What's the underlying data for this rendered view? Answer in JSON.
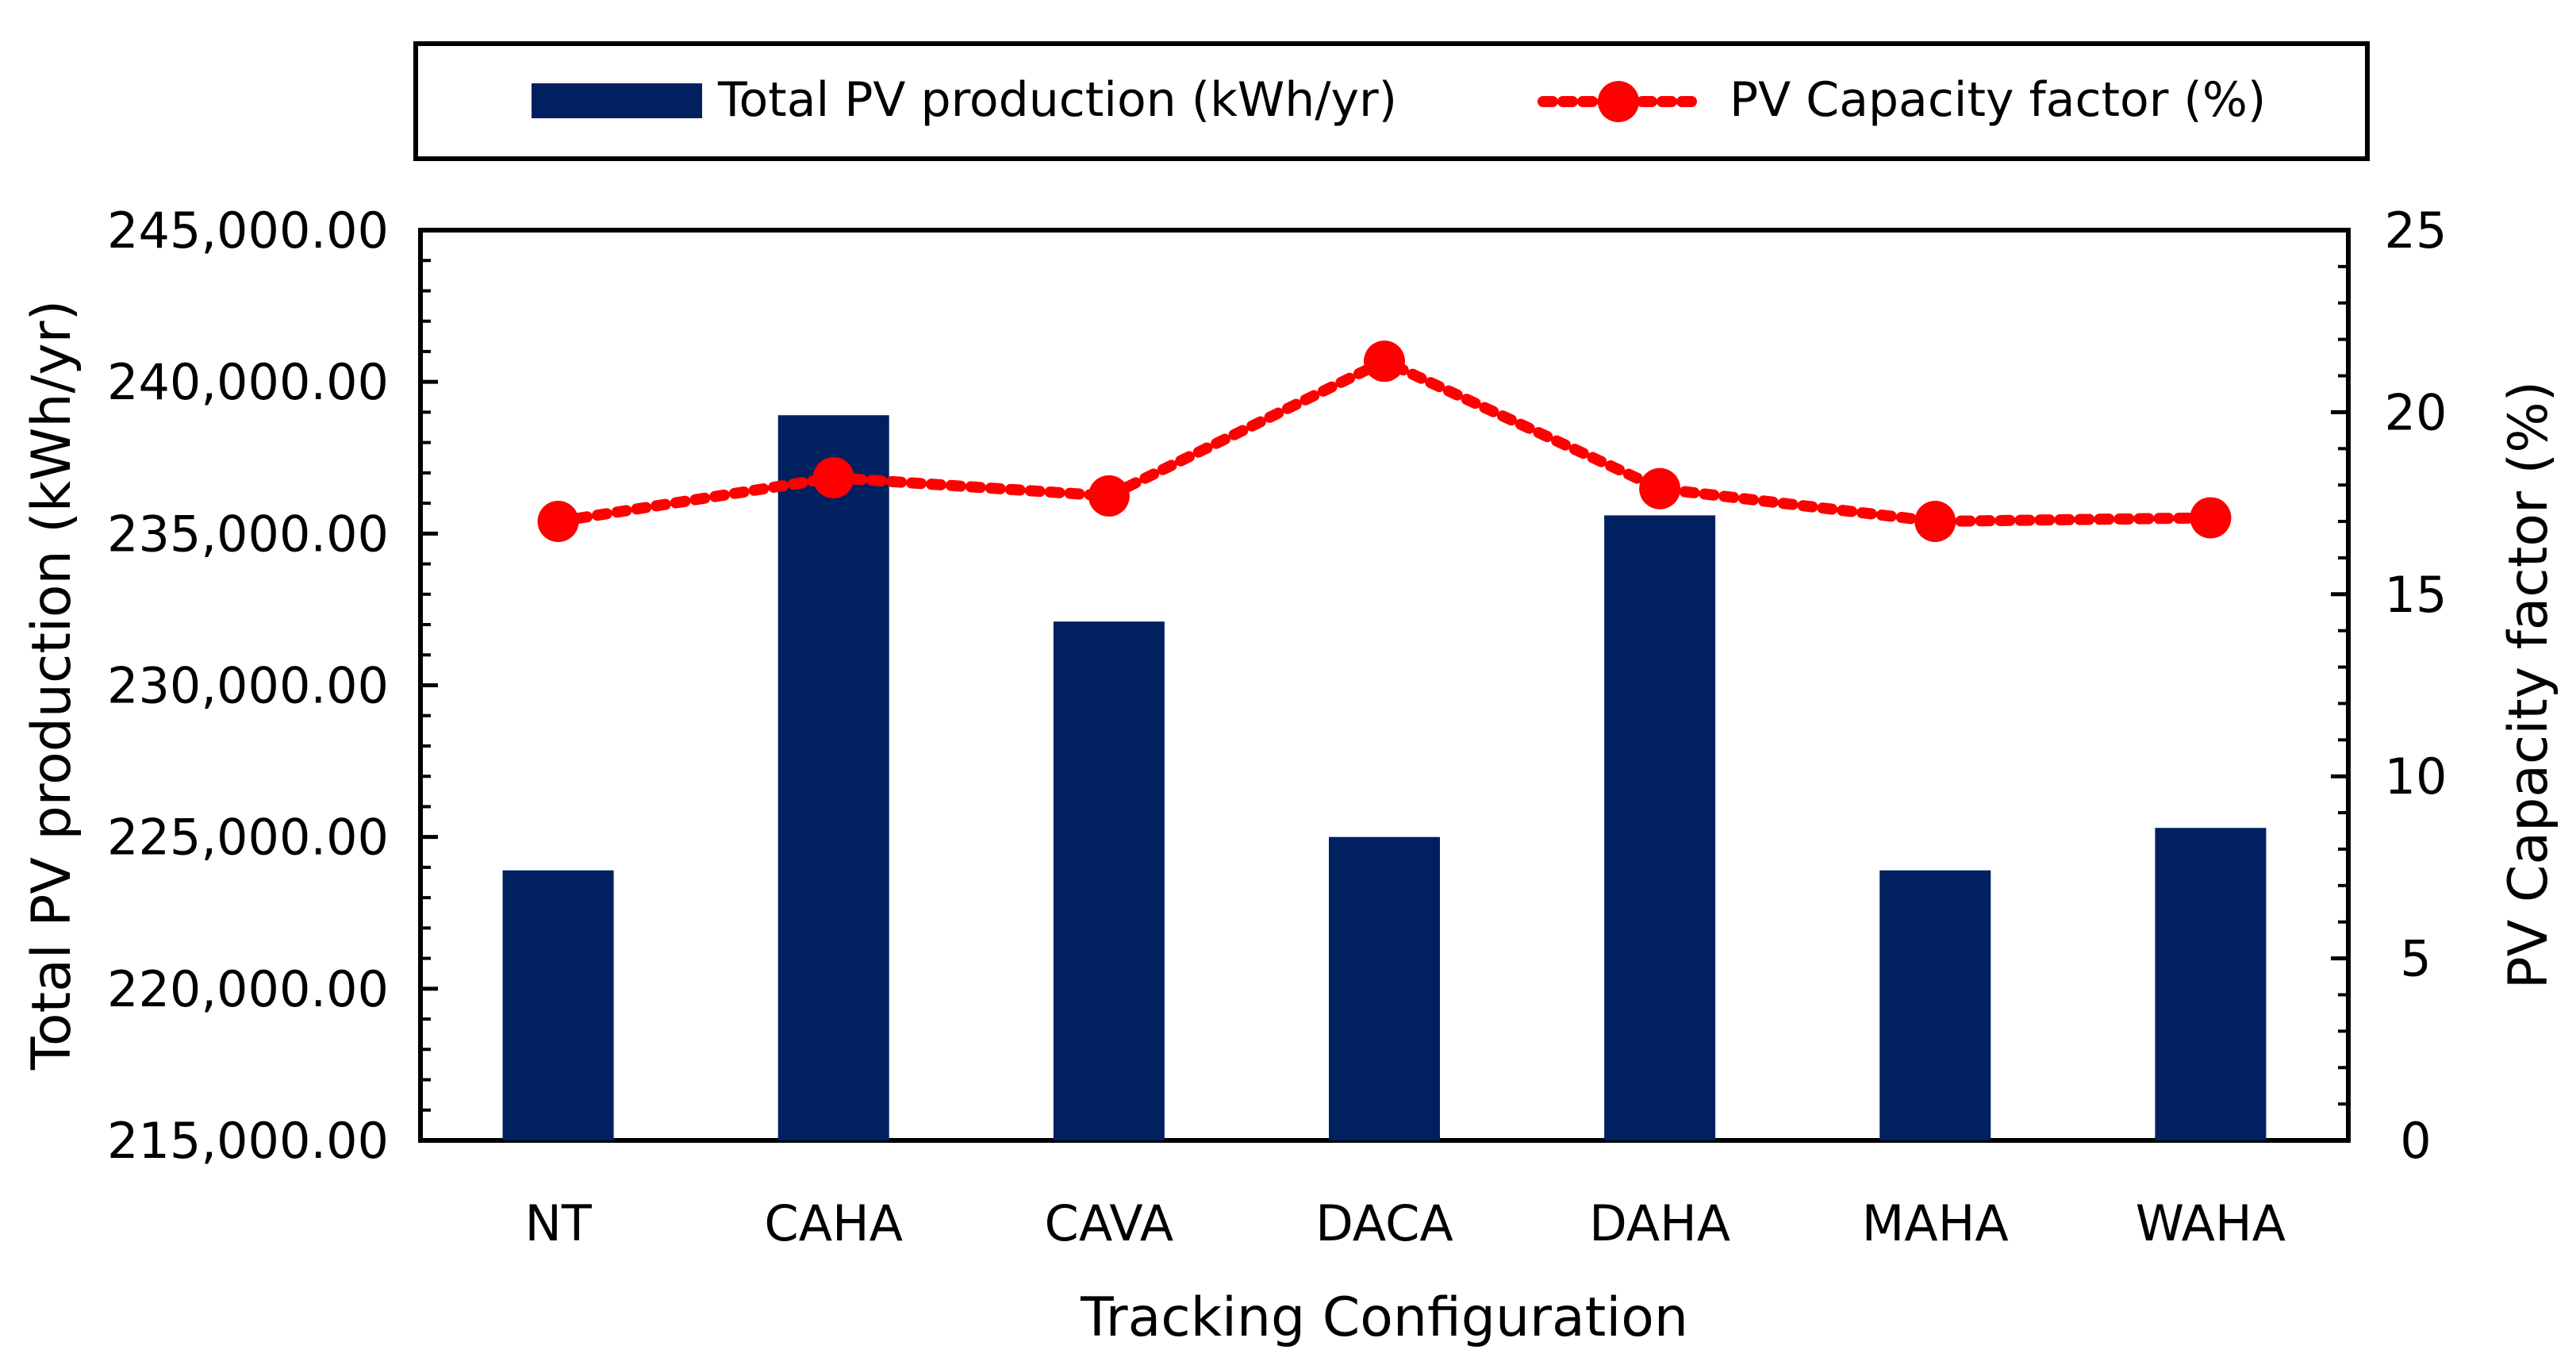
{
  "chart_data": {
    "type": "bar+line",
    "xlabel": "Tracking Configuration",
    "ylabel_left": "Total PV production (kWh/yr)",
    "ylabel_right": "PV Capacity factor (%)",
    "categories": [
      "NT",
      "CAHA",
      "CAVA",
      "DACA",
      "DAHA",
      "MAHA",
      "WAHA"
    ],
    "left_axis": {
      "min": 215000,
      "max": 245000,
      "major_step": 5000,
      "minor_step": 1000,
      "tick_labels": [
        "215,000.00",
        "220,000.00",
        "225,000.00",
        "230,000.00",
        "235,000.00",
        "240,000.00",
        "245,000.00"
      ]
    },
    "right_axis": {
      "min": 0,
      "max": 25,
      "major_step": 5,
      "minor_step": 1,
      "tick_labels": [
        "0",
        "5",
        "10",
        "15",
        "20",
        "25"
      ]
    },
    "series": [
      {
        "name": "Total PV production (kWh/yr)",
        "kind": "bar",
        "axis": "left",
        "color": "#002060",
        "values": [
          223900,
          238900,
          232100,
          225000,
          235600,
          223900,
          225300
        ]
      },
      {
        "name": "PV Capacity factor (%)",
        "kind": "line",
        "style": "dotted",
        "marker": "circle",
        "axis": "right",
        "color": "#ff0000",
        "values": [
          17.0,
          18.2,
          17.7,
          21.4,
          17.9,
          17.0,
          17.1
        ]
      }
    ],
    "legend": {
      "placement": "top",
      "items": [
        "Total PV production (kWh/yr)",
        "PV Capacity factor (%)"
      ]
    }
  }
}
